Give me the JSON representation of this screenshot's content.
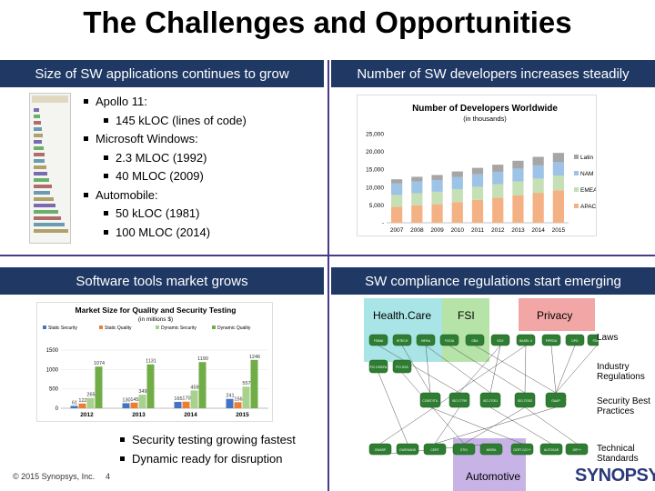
{
  "slide": {
    "title": "The Challenges and Opportunities",
    "q1": {
      "header": "Size of SW applications continues to grow",
      "bullets": [
        {
          "level": 1,
          "text": "Apollo 11:"
        },
        {
          "level": 2,
          "text": "145 kLOC (lines of code)"
        },
        {
          "level": 1,
          "text": "Microsoft Windows:"
        },
        {
          "level": 2,
          "text": "2.3 MLOC (1992)"
        },
        {
          "level": 2,
          "text": "40 MLOC (2009)"
        },
        {
          "level": 1,
          "text": "Automobile:"
        },
        {
          "level": 2,
          "text": "50 kLOC (1981)"
        },
        {
          "level": 2,
          "text": "100 MLOC (2014)"
        }
      ]
    },
    "q2": {
      "header": "Number of SW developers increases steadily"
    },
    "q3": {
      "header": "Software tools market grows",
      "bullets": [
        "Security testing growing fastest",
        "Dynamic ready for disruption"
      ]
    },
    "q4": {
      "header": "SW compliance regulations start emerging",
      "cat_healthcare": "Health.Care",
      "cat_fsi": "FSI",
      "cat_privacy": "Privacy",
      "cat_automotive": "Automotive",
      "row_laws": "Laws",
      "row_industry": "Industry\nRegulations",
      "row_security": "Security Best\nPractices",
      "row_technical": "Technical\nStandards",
      "nodes_laws": [
        "FISMA",
        "HITECH",
        "HIPAA",
        "FOCIA",
        "GBA",
        "SOX",
        "BASEL II",
        "PIPEDA",
        "DPD",
        "FDPA"
      ],
      "nodes_industry": [
        "PCI DSS/PA",
        "PCI DSS"
      ],
      "nodes_security": [
        "COBIT/ITIL",
        "ISO 17799",
        "ISO 27001",
        "ISO 27002",
        "GAAP"
      ],
      "nodes_technical": [
        "OWASP",
        "CWE/SANS",
        "CERT",
        "STIG",
        "MISRA",
        "CERT C/C++",
        "AUTOSAR",
        "JSF++"
      ]
    },
    "footer": {
      "copyright": "© 2015 Synopsys, Inc.",
      "page": "4",
      "logo": "SYNOPSYS"
    }
  },
  "chart_data": [
    {
      "type": "bar",
      "stacked": true,
      "title": "Number of Developers Worldwide",
      "subtitle": "(in thousands)",
      "categories": [
        "2007",
        "2008",
        "2009",
        "2010",
        "2011",
        "2012",
        "2013",
        "2014",
        "2015"
      ],
      "ylim": [
        0,
        25000
      ],
      "yticks": [
        "25,000",
        "20,000",
        "15,000",
        "10,000",
        "5,000",
        "-"
      ],
      "series": [
        {
          "name": "APAC",
          "color": "#f4b183",
          "values": [
            4500,
            4900,
            5200,
            5800,
            6400,
            7000,
            7700,
            8400,
            9100
          ]
        },
        {
          "name": "EMEA",
          "color": "#c5e0b4",
          "values": [
            3300,
            3400,
            3500,
            3600,
            3700,
            3800,
            3900,
            4000,
            4100
          ]
        },
        {
          "name": "NAM",
          "color": "#9dc3e6",
          "values": [
            3200,
            3300,
            3300,
            3400,
            3500,
            3500,
            3600,
            3700,
            3800
          ]
        },
        {
          "name": "Latin",
          "color": "#a6a6a6",
          "values": [
            1200,
            1300,
            1400,
            1600,
            1800,
            2000,
            2200,
            2400,
            2600
          ]
        }
      ],
      "legend": "right"
    },
    {
      "type": "bar",
      "title": "Market Size for Quality and Security Testing",
      "subtitle": "(in millions $)",
      "categories": [
        "2012",
        "2013",
        "2014",
        "2015"
      ],
      "ylim": [
        0,
        1500
      ],
      "yticks": [
        "1500",
        "1000",
        "500",
        "0"
      ],
      "series": [
        {
          "name": "Static Security",
          "color": "#4472c4",
          "values": [
            61,
            130,
            165,
            241
          ]
        },
        {
          "name": "Static Quality",
          "color": "#ed7d31",
          "values": [
            122,
            145,
            170,
            156
          ]
        },
        {
          "name": "Dynamic Security",
          "color": "#a9d18e",
          "values": [
            265,
            349,
            459,
            557
          ]
        },
        {
          "name": "Dynamic Quality",
          "color": "#70ad47",
          "values": [
            1074,
            1131,
            1190,
            1246
          ]
        }
      ],
      "legend": "top"
    }
  ]
}
